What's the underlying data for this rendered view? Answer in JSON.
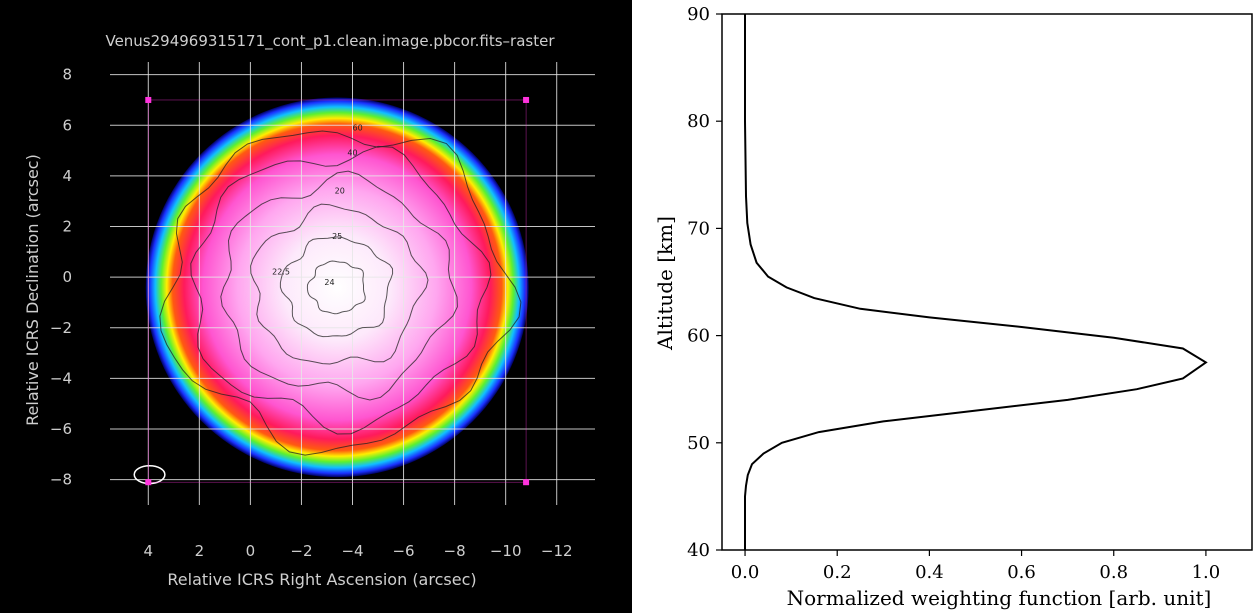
{
  "colors": {
    "left_background": "#000000",
    "left_text": "#cfcfcf",
    "grid": "#e6e6e6",
    "marker": "#ff33dd",
    "contour": "#222222",
    "right_line": "#000000"
  },
  "chart_data": [
    {
      "type": "heatmap",
      "title": "Venus294969315171_cont_p1.clean.image.pbcor.fits–raster",
      "xlabel": "Relative ICRS Right Ascension (arcsec)",
      "ylabel": "Relative ICRS Declination (arcsec)",
      "xlim": [
        5.5,
        -13.5
      ],
      "ylim": [
        -9,
        8.5
      ],
      "x_ticks": [
        4,
        2,
        0,
        -2,
        -4,
        -6,
        -8,
        -10,
        -12
      ],
      "x_tick_labels": [
        "4",
        "2",
        "0",
        "−2",
        "−4",
        "−6",
        "−8",
        "−10",
        "−12"
      ],
      "y_ticks": [
        8,
        6,
        4,
        2,
        0,
        -2,
        -4,
        -6,
        -8
      ],
      "y_tick_labels": [
        "8",
        "6",
        "4",
        "2",
        "0",
        "−2",
        "−4",
        "−6",
        "−8"
      ],
      "grid": true,
      "disk": {
        "center": [
          -3.4,
          -0.4
        ],
        "radius": 7.5
      },
      "beam": {
        "center": [
          3.95,
          -7.8
        ],
        "rx": 0.6,
        "ry": 0.35
      },
      "region_corners": [
        [
          4,
          7
        ],
        [
          -10.8,
          7
        ],
        [
          4,
          -8.1
        ],
        [
          -10.8,
          -8.1
        ]
      ],
      "contours": [
        {
          "level": "60",
          "radius": 6.7,
          "label_at": [
            -4.2,
            5.8
          ]
        },
        {
          "level": "40",
          "radius": 5.7,
          "label_at": [
            -4.0,
            4.8
          ]
        },
        {
          "level": "20",
          "radius": 4.5,
          "label_at": [
            -3.5,
            3.3
          ]
        },
        {
          "level": "25",
          "radius": 3.3,
          "label_at": [
            -3.4,
            1.5
          ]
        },
        {
          "level": "22.5",
          "radius": 2.1,
          "label_at": [
            -1.2,
            0.1
          ]
        },
        {
          "level": "24",
          "radius": 1.1,
          "label_at": [
            -3.1,
            -0.3
          ]
        }
      ]
    },
    {
      "type": "line",
      "title": "",
      "xlabel": "Normalized weighting function [arb. unit]",
      "ylabel": "Altitude [km]",
      "xlim": [
        -0.05,
        1.1
      ],
      "ylim": [
        40,
        90
      ],
      "x_ticks": [
        0.0,
        0.2,
        0.4,
        0.6,
        0.8,
        1.0
      ],
      "x_tick_labels": [
        "0.0",
        "0.2",
        "0.4",
        "0.6",
        "0.8",
        "1.0"
      ],
      "y_ticks": [
        40,
        50,
        60,
        70,
        80,
        90
      ],
      "y_tick_labels": [
        "40",
        "50",
        "60",
        "70",
        "80",
        "90"
      ],
      "grid": false,
      "series": [
        {
          "x": [
            0.0,
            0.0,
            0.002,
            0.006,
            0.015,
            0.04,
            0.08,
            0.16,
            0.3,
            0.5,
            0.7,
            0.85,
            0.95,
            1.0,
            0.95,
            0.8,
            0.6,
            0.4,
            0.25,
            0.15,
            0.09,
            0.05,
            0.025,
            0.012,
            0.005,
            0.002,
            0.0,
            0.0
          ],
          "y": [
            40,
            45,
            46,
            47,
            48,
            49,
            50,
            51,
            52,
            53,
            54,
            55,
            56,
            57.5,
            58.8,
            59.8,
            60.8,
            61.7,
            62.5,
            63.5,
            64.5,
            65.5,
            66.8,
            68.5,
            70.5,
            73,
            80,
            90
          ]
        }
      ]
    }
  ]
}
